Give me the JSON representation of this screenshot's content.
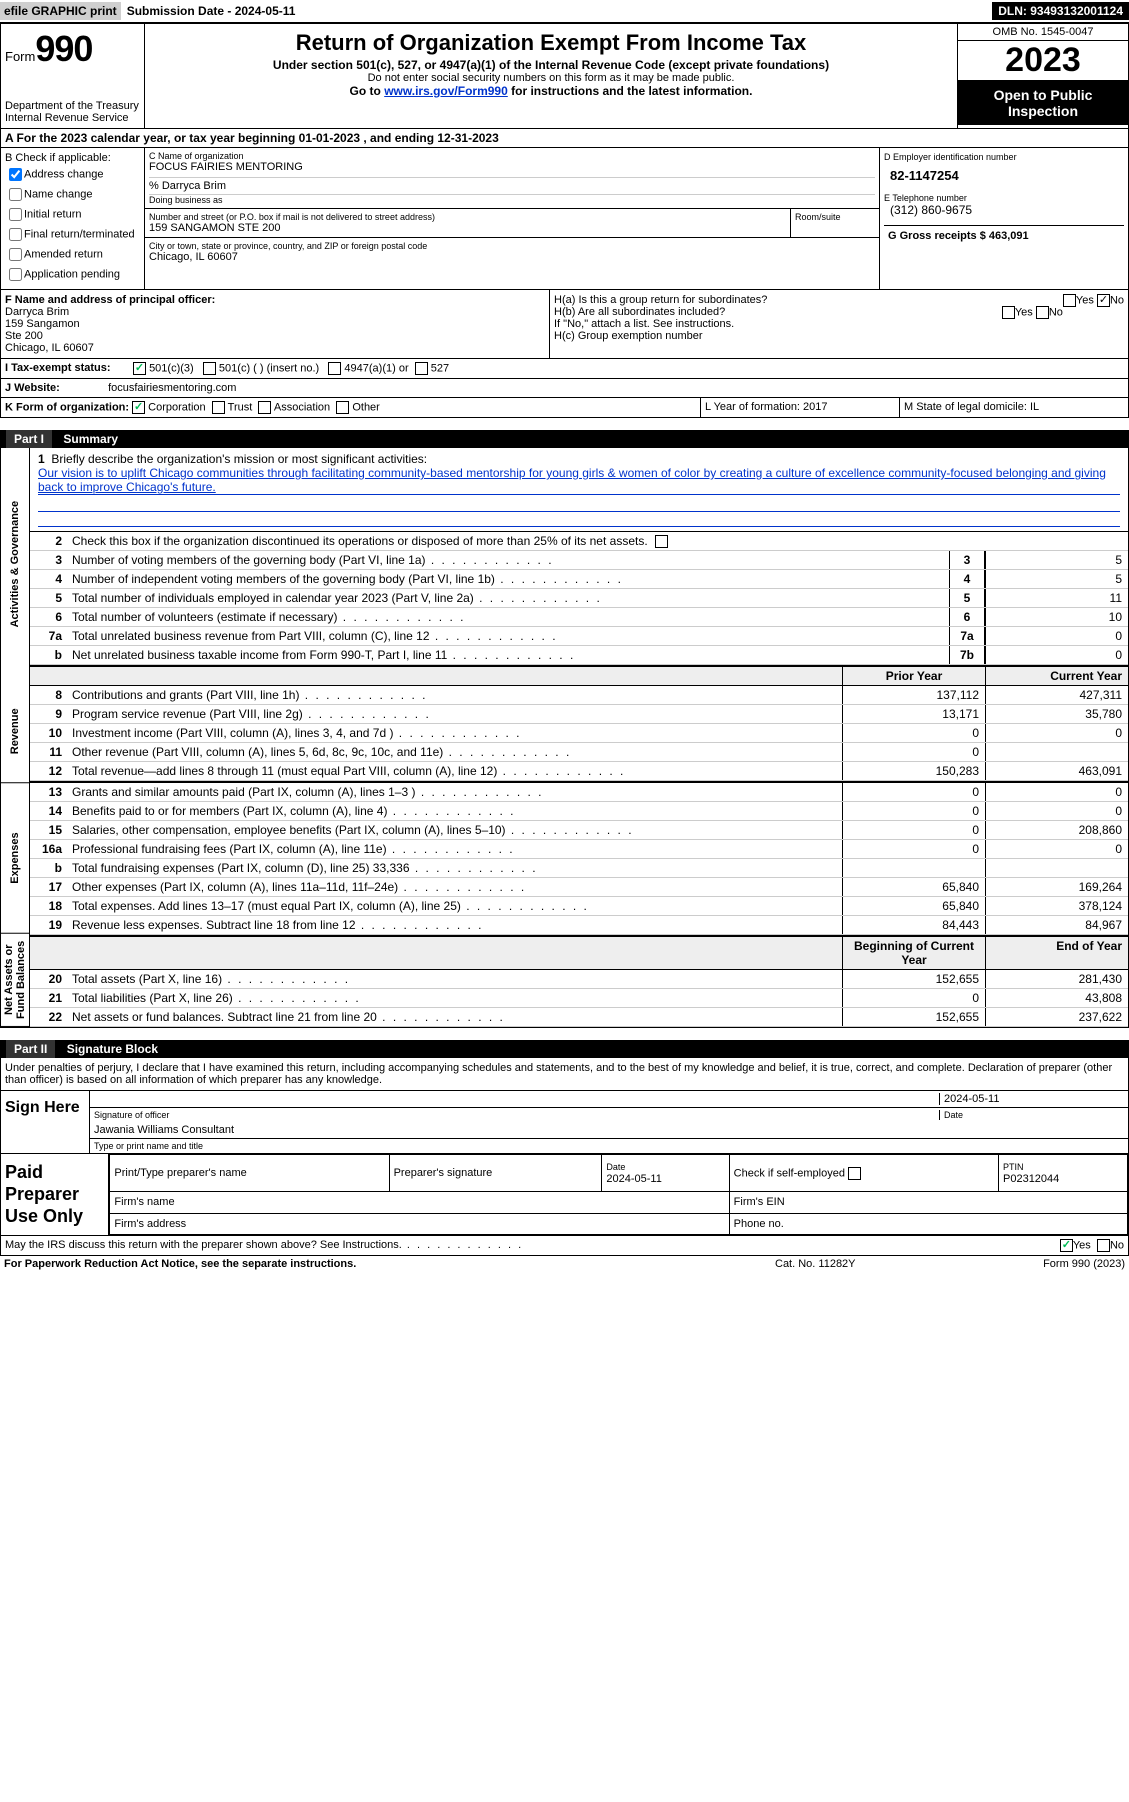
{
  "topbar": {
    "efile": "efile GRAPHIC print",
    "submission": "Submission Date - 2024-05-11",
    "dln": "DLN: 93493132001124"
  },
  "header": {
    "form_prefix": "Form",
    "form_number": "990",
    "title": "Return of Organization Exempt From Income Tax",
    "sub1": "Under section 501(c), 527, or 4947(a)(1) of the Internal Revenue Code (except private foundations)",
    "sub2": "Do not enter social security numbers on this form as it may be made public.",
    "goto_prefix": "Go to ",
    "goto_link": "www.irs.gov/Form990",
    "goto_suffix": " for instructions and the latest information.",
    "dept": "Department of the Treasury",
    "irs": "Internal Revenue Service",
    "omb": "OMB No. 1545-0047",
    "year": "2023",
    "open_public": "Open to Public Inspection"
  },
  "lineA": {
    "text": "A For the 2023 calendar year, or tax year beginning 01-01-2023   , and ending 12-31-2023"
  },
  "colB": {
    "title": "B Check if applicable:",
    "addr_change": "Address change",
    "name_change": "Name change",
    "initial": "Initial return",
    "final": "Final return/terminated",
    "amended": "Amended return",
    "app_pending": "Application pending"
  },
  "colC": {
    "name_label": "C Name of organization",
    "org_name": "FOCUS FAIRIES MENTORING",
    "care_of": "% Darryca Brim",
    "dba_label": "Doing business as",
    "street_label": "Number and street (or P.O. box if mail is not delivered to street address)",
    "street": "159 SANGAMON STE 200",
    "room_label": "Room/suite",
    "city_label": "City or town, state or province, country, and ZIP or foreign postal code",
    "city": "Chicago, IL  60607"
  },
  "colD": {
    "ein_label": "D Employer identification number",
    "ein": "82-1147254",
    "phone_label": "E Telephone number",
    "phone": "(312) 860-9675",
    "gross_label": "G Gross receipts $",
    "gross": "463,091"
  },
  "rowF": {
    "label": "F Name and address of principal officer:",
    "name": "Darryca Brim",
    "addr1": "159 Sangamon",
    "addr2": "Ste 200",
    "addr3": "Chicago, IL  60607"
  },
  "rowH": {
    "ha": "H(a)  Is this a group return for subordinates?",
    "hb": "H(b)  Are all subordinates included?",
    "hb_note": "If \"No,\" attach a list. See instructions.",
    "hc": "H(c)  Group exemption number",
    "yes": "Yes",
    "no": "No"
  },
  "rowI": {
    "label": "I   Tax-exempt status:",
    "opt501c3": "501(c)(3)",
    "opt501c": "501(c) (  ) (insert no.)",
    "opt4947": "4947(a)(1) or",
    "opt527": "527"
  },
  "rowJ": {
    "label": "J   Website:",
    "value": "focusfairiesmentoring.com"
  },
  "rowK": {
    "k": "K Form of organization:",
    "corp": "Corporation",
    "trust": "Trust",
    "assoc": "Association",
    "other": "Other",
    "l": "L Year of formation: 2017",
    "m": "M State of legal domicile: IL"
  },
  "part1": {
    "header_num": "Part I",
    "header_title": "Summary",
    "line1_label": "Briefly describe the organization's mission or most significant activities:",
    "line1_text": "Our vision is to uplift Chicago communities through facilitating community-based mentorship for young girls & women of color by creating a culture of excellence community-focused belonging and giving back to improve Chicago's future.",
    "line2": "Check this box       if the organization discontinued its operations or disposed of more than 25% of its net assets.",
    "lines_single": [
      {
        "n": "3",
        "d": "Number of voting members of the governing body (Part VI, line 1a)",
        "c": "3",
        "v": "5"
      },
      {
        "n": "4",
        "d": "Number of independent voting members of the governing body (Part VI, line 1b)",
        "c": "4",
        "v": "5"
      },
      {
        "n": "5",
        "d": "Total number of individuals employed in calendar year 2023 (Part V, line 2a)",
        "c": "5",
        "v": "11"
      },
      {
        "n": "6",
        "d": "Total number of volunteers (estimate if necessary)",
        "c": "6",
        "v": "10"
      },
      {
        "n": "7a",
        "d": "Total unrelated business revenue from Part VIII, column (C), line 12",
        "c": "7a",
        "v": "0"
      },
      {
        "n": "b",
        "d": "Net unrelated business taxable income from Form 990-T, Part I, line 11",
        "c": "7b",
        "v": "0"
      }
    ],
    "hdr_prior": "Prior Year",
    "hdr_current": "Current Year",
    "revenue": [
      {
        "n": "8",
        "d": "Contributions and grants (Part VIII, line 1h)",
        "p": "137,112",
        "c": "427,311"
      },
      {
        "n": "9",
        "d": "Program service revenue (Part VIII, line 2g)",
        "p": "13,171",
        "c": "35,780"
      },
      {
        "n": "10",
        "d": "Investment income (Part VIII, column (A), lines 3, 4, and 7d )",
        "p": "0",
        "c": "0"
      },
      {
        "n": "11",
        "d": "Other revenue (Part VIII, column (A), lines 5, 6d, 8c, 9c, 10c, and 11e)",
        "p": "0",
        "c": ""
      },
      {
        "n": "12",
        "d": "Total revenue—add lines 8 through 11 (must equal Part VIII, column (A), line 12)",
        "p": "150,283",
        "c": "463,091"
      }
    ],
    "expenses": [
      {
        "n": "13",
        "d": "Grants and similar amounts paid (Part IX, column (A), lines 1–3 )",
        "p": "0",
        "c": "0"
      },
      {
        "n": "14",
        "d": "Benefits paid to or for members (Part IX, column (A), line 4)",
        "p": "0",
        "c": "0"
      },
      {
        "n": "15",
        "d": "Salaries, other compensation, employee benefits (Part IX, column (A), lines 5–10)",
        "p": "0",
        "c": "208,860"
      },
      {
        "n": "16a",
        "d": "Professional fundraising fees (Part IX, column (A), line 11e)",
        "p": "0",
        "c": "0"
      },
      {
        "n": "b",
        "d": "Total fundraising expenses (Part IX, column (D), line 25) 33,336",
        "p": "",
        "c": ""
      },
      {
        "n": "17",
        "d": "Other expenses (Part IX, column (A), lines 11a–11d, 11f–24e)",
        "p": "65,840",
        "c": "169,264"
      },
      {
        "n": "18",
        "d": "Total expenses. Add lines 13–17 (must equal Part IX, column (A), line 25)",
        "p": "65,840",
        "c": "378,124"
      },
      {
        "n": "19",
        "d": "Revenue less expenses. Subtract line 18 from line 12",
        "p": "84,443",
        "c": "84,967"
      }
    ],
    "hdr_begin": "Beginning of Current Year",
    "hdr_end": "End of Year",
    "netassets": [
      {
        "n": "20",
        "d": "Total assets (Part X, line 16)",
        "p": "152,655",
        "c": "281,430"
      },
      {
        "n": "21",
        "d": "Total liabilities (Part X, line 26)",
        "p": "0",
        "c": "43,808"
      },
      {
        "n": "22",
        "d": "Net assets or fund balances. Subtract line 21 from line 20",
        "p": "152,655",
        "c": "237,622"
      }
    ],
    "vtabs": {
      "ag": "Activities & Governance",
      "rev": "Revenue",
      "exp": "Expenses",
      "na": "Net Assets or Fund Balances"
    }
  },
  "part2": {
    "header_num": "Part II",
    "header_title": "Signature Block",
    "intro": "Under penalties of perjury, I declare that I have examined this return, including accompanying schedules and statements, and to the best of my knowledge and belief, it is true, correct, and complete. Declaration of preparer (other than officer) is based on all information of which preparer has any knowledge.",
    "sign_here": "Sign Here",
    "sig_officer": "Signature of officer",
    "sig_date_val": "2024-05-11",
    "sig_date": "Date",
    "officer_name": "Jawania Williams Consultant",
    "type_name": "Type or print name and title",
    "paid_prep": "Paid Preparer Use Only",
    "prep_name_label": "Print/Type preparer's name",
    "prep_sig_label": "Preparer's signature",
    "prep_date_label": "Date",
    "prep_date_val": "2024-05-11",
    "check_if": "Check        if self-employed",
    "ptin_label": "PTIN",
    "ptin": "P02312044",
    "firm_name": "Firm's name",
    "firm_ein": "Firm's EIN",
    "firm_addr": "Firm's address",
    "phone_no": "Phone no.",
    "discuss": "May the IRS discuss this return with the preparer shown above? See Instructions.",
    "yes": "Yes",
    "no": "No"
  },
  "footer": {
    "pra": "For Paperwork Reduction Act Notice, see the separate instructions.",
    "cat": "Cat. No. 11282Y",
    "form": "Form 990 (2023)"
  }
}
